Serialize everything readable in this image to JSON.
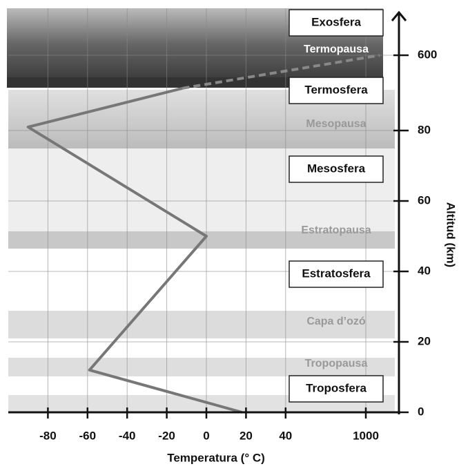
{
  "chart_data": {
    "type": "line",
    "x_label": "Temperatura (° C)",
    "y_label": "Altitud (km)",
    "xticks": [
      -80,
      -60,
      -40,
      -20,
      0,
      20,
      40,
      1000
    ],
    "yticks": [
      0,
      20,
      40,
      60,
      80,
      600
    ],
    "grid": true,
    "series": [
      {
        "color": "#777777",
        "dashed": false,
        "x": [
          18,
          -59,
          0,
          -90,
          -12
        ],
        "values": [
          0,
          12,
          50,
          81,
          92
        ]
      },
      {
        "color": "#888888",
        "dashed": true,
        "x": [
          -12,
          1100
        ],
        "values": [
          92,
          600
        ]
      }
    ],
    "layers": [
      "Exosfera",
      "Termosfera",
      "Mesosfera",
      "Estratosfera",
      "Troposfera"
    ],
    "boundaries": [
      "Termopausa",
      "Mesopausa",
      "Estratopausa",
      "Capa d’ozó",
      "Tropopausa"
    ]
  }
}
